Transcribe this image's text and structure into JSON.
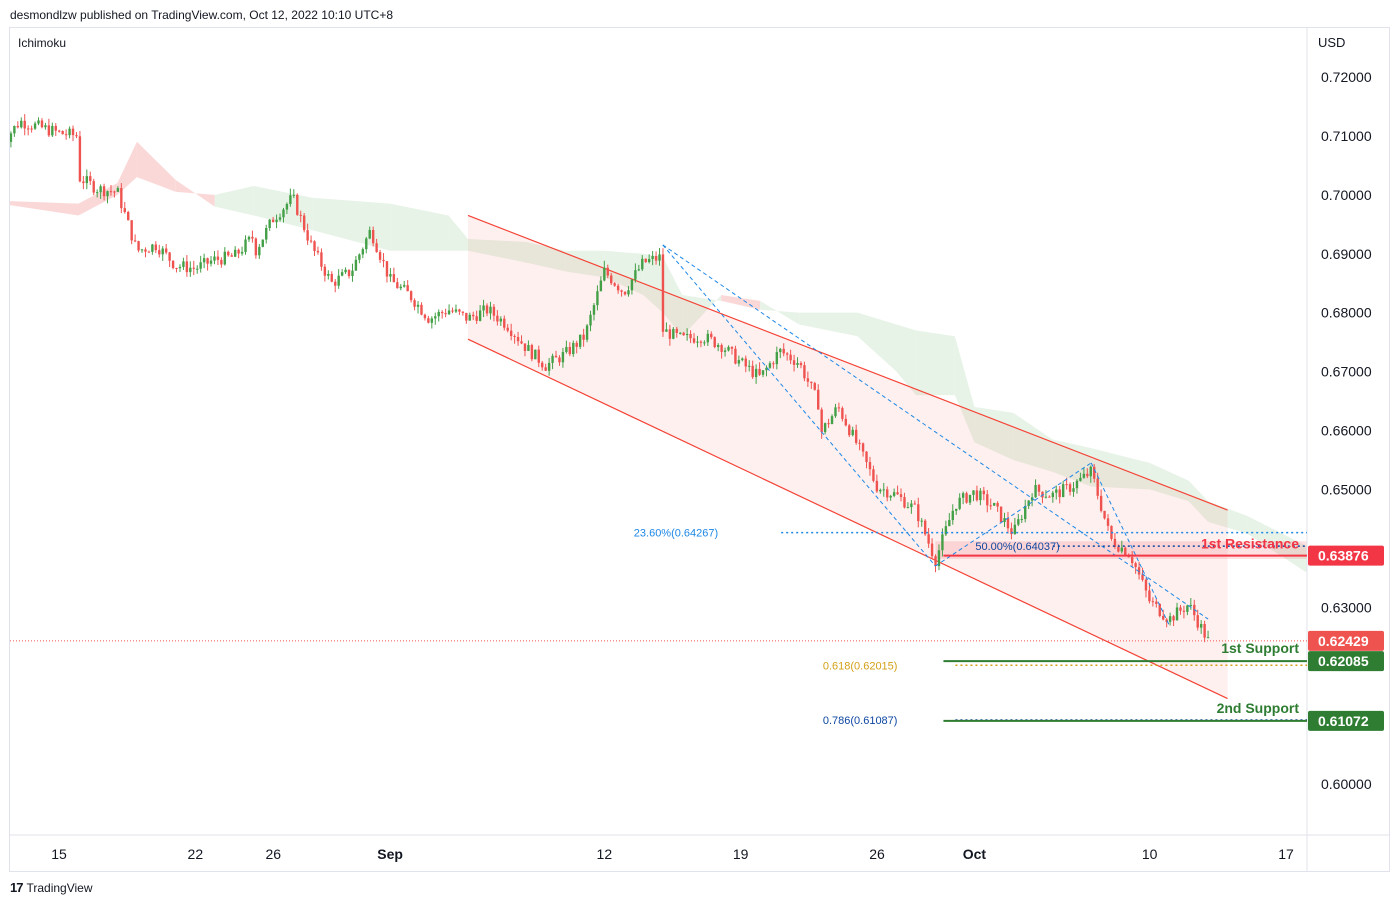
{
  "header": {
    "byline": "desmondlzw published on TradingView.com, Oct 12, 2022 10:10 UTC+8"
  },
  "indicator_label": "Ichimoku",
  "footer": {
    "logo_mark": "17",
    "brand": "TradingView"
  },
  "colors": {
    "up": "#26a69a",
    "up_body": "#43a047",
    "down": "#ef5350",
    "channel": "#f44336",
    "resistance": "#f23645",
    "support": "#2e7d32",
    "fib_blue": "#1e88e5",
    "fib_gold": "#d4a017",
    "fib_dark": "#0d47a1",
    "cloud_bear": "#fbd4d4",
    "cloud_bull": "#e6f2e6"
  },
  "chart_data": {
    "type": "candlestick",
    "currency": "USD",
    "y_range": [
      0.591,
      0.7245
    ],
    "y_ticks": [
      {
        "value": 0.72,
        "label": "0.72000"
      },
      {
        "value": 0.71,
        "label": "0.71000"
      },
      {
        "value": 0.7,
        "label": "0.70000"
      },
      {
        "value": 0.69,
        "label": "0.69000"
      },
      {
        "value": 0.68,
        "label": "0.68000"
      },
      {
        "value": 0.67,
        "label": "0.67000"
      },
      {
        "value": 0.66,
        "label": "0.66000"
      },
      {
        "value": 0.65,
        "label": "0.65000"
      },
      {
        "value": 0.63,
        "label": "0.63000"
      },
      {
        "value": 0.6,
        "label": "0.60000"
      }
    ],
    "x_range": [
      "2022-08-12",
      "2022-10-20"
    ],
    "x_ticks": [
      {
        "date": "2022-08-15",
        "label": "15",
        "bold": false
      },
      {
        "date": "2022-08-22",
        "label": "22",
        "bold": false
      },
      {
        "date": "2022-08-26",
        "label": "26",
        "bold": false
      },
      {
        "date": "2022-09-01",
        "label": "Sep",
        "bold": true
      },
      {
        "date": "2022-09-12",
        "label": "12",
        "bold": false
      },
      {
        "date": "2022-09-19",
        "label": "19",
        "bold": false
      },
      {
        "date": "2022-09-26",
        "label": "26",
        "bold": false
      },
      {
        "date": "2022-10-01",
        "label": "Oct",
        "bold": true
      },
      {
        "date": "2022-10-10",
        "label": "10",
        "bold": false
      },
      {
        "date": "2022-10-17",
        "label": "17",
        "bold": false
      }
    ],
    "price_path": [
      {
        "date": "2022-08-12",
        "price": 0.7085
      },
      {
        "date": "2022-08-13",
        "price": 0.7125
      },
      {
        "date": "2022-08-15",
        "price": 0.7105
      },
      {
        "date": "2022-08-16",
        "price": 0.71
      },
      {
        "date": "2022-08-16",
        "price": 0.703
      },
      {
        "date": "2022-08-17",
        "price": 0.701
      },
      {
        "date": "2022-08-18",
        "price": 0.7005
      },
      {
        "date": "2022-08-19",
        "price": 0.6905
      },
      {
        "date": "2022-08-20",
        "price": 0.6915
      },
      {
        "date": "2022-08-21",
        "price": 0.688
      },
      {
        "date": "2022-08-22",
        "price": 0.6875
      },
      {
        "date": "2022-08-23",
        "price": 0.689
      },
      {
        "date": "2022-08-24",
        "price": 0.6895
      },
      {
        "date": "2022-08-25",
        "price": 0.693
      },
      {
        "date": "2022-08-25",
        "price": 0.69
      },
      {
        "date": "2022-08-26",
        "price": 0.696
      },
      {
        "date": "2022-08-27",
        "price": 0.6995
      },
      {
        "date": "2022-08-28",
        "price": 0.691
      },
      {
        "date": "2022-08-29",
        "price": 0.685
      },
      {
        "date": "2022-08-30",
        "price": 0.687
      },
      {
        "date": "2022-08-31",
        "price": 0.694
      },
      {
        "date": "2022-09-01",
        "price": 0.6855
      },
      {
        "date": "2022-09-02",
        "price": 0.683
      },
      {
        "date": "2022-09-03",
        "price": 0.679
      },
      {
        "date": "2022-09-04",
        "price": 0.6805
      },
      {
        "date": "2022-09-05",
        "price": 0.679
      },
      {
        "date": "2022-09-06",
        "price": 0.6805
      },
      {
        "date": "2022-09-07",
        "price": 0.678
      },
      {
        "date": "2022-09-08",
        "price": 0.674
      },
      {
        "date": "2022-09-09",
        "price": 0.671
      },
      {
        "date": "2022-09-10",
        "price": 0.673
      },
      {
        "date": "2022-09-11",
        "price": 0.676
      },
      {
        "date": "2022-09-12",
        "price": 0.687
      },
      {
        "date": "2022-09-13",
        "price": 0.6835
      },
      {
        "date": "2022-09-14",
        "price": 0.6885
      },
      {
        "date": "2022-09-15",
        "price": 0.6895
      },
      {
        "date": "2022-09-15",
        "price": 0.677
      },
      {
        "date": "2022-09-16",
        "price": 0.6755
      },
      {
        "date": "2022-09-17",
        "price": 0.676
      },
      {
        "date": "2022-09-18",
        "price": 0.6745
      },
      {
        "date": "2022-09-19",
        "price": 0.6715
      },
      {
        "date": "2022-09-20",
        "price": 0.669
      },
      {
        "date": "2022-09-21",
        "price": 0.6735
      },
      {
        "date": "2022-09-22",
        "price": 0.6715
      },
      {
        "date": "2022-09-23",
        "price": 0.6645
      },
      {
        "date": "2022-09-23",
        "price": 0.659
      },
      {
        "date": "2022-09-24",
        "price": 0.664
      },
      {
        "date": "2022-09-25",
        "price": 0.6575
      },
      {
        "date": "2022-09-26",
        "price": 0.6505
      },
      {
        "date": "2022-09-27",
        "price": 0.649
      },
      {
        "date": "2022-09-28",
        "price": 0.6465
      },
      {
        "date": "2022-09-29",
        "price": 0.638
      },
      {
        "date": "2022-09-30",
        "price": 0.6475
      },
      {
        "date": "2022-10-01",
        "price": 0.6495
      },
      {
        "date": "2022-10-02",
        "price": 0.647
      },
      {
        "date": "2022-10-03",
        "price": 0.6425
      },
      {
        "date": "2022-10-04",
        "price": 0.65
      },
      {
        "date": "2022-10-05",
        "price": 0.649
      },
      {
        "date": "2022-10-06",
        "price": 0.6505
      },
      {
        "date": "2022-10-07",
        "price": 0.653
      },
      {
        "date": "2022-10-08",
        "price": 0.6415
      },
      {
        "date": "2022-10-09",
        "price": 0.639
      },
      {
        "date": "2022-10-10",
        "price": 0.631
      },
      {
        "date": "2022-10-11",
        "price": 0.628
      },
      {
        "date": "2022-10-12",
        "price": 0.6305
      },
      {
        "date": "2022-10-13",
        "price": 0.6243
      }
    ],
    "ichimoku_cloud": [
      {
        "date": "2022-08-12",
        "a": 0.6985,
        "b": 0.699
      },
      {
        "date": "2022-08-16",
        "a": 0.6965,
        "b": 0.6985
      },
      {
        "date": "2022-08-18",
        "a": 0.7,
        "b": 0.702
      },
      {
        "date": "2022-08-19",
        "a": 0.703,
        "b": 0.709
      },
      {
        "date": "2022-08-21",
        "a": 0.7005,
        "b": 0.7025
      },
      {
        "date": "2022-08-23",
        "a": 0.7,
        "b": 0.698
      },
      {
        "date": "2022-08-25",
        "a": 0.7015,
        "b": 0.6965
      },
      {
        "date": "2022-08-28",
        "a": 0.6995,
        "b": 0.694
      },
      {
        "date": "2022-09-01",
        "a": 0.6985,
        "b": 0.6905
      },
      {
        "date": "2022-09-04",
        "a": 0.6965,
        "b": 0.6905
      },
      {
        "date": "2022-09-05",
        "a": 0.6925,
        "b": 0.6905
      },
      {
        "date": "2022-09-08",
        "a": 0.692,
        "b": 0.6885
      },
      {
        "date": "2022-09-10",
        "a": 0.6905,
        "b": 0.687
      },
      {
        "date": "2022-09-12",
        "a": 0.6905,
        "b": 0.686
      },
      {
        "date": "2022-09-14",
        "a": 0.69,
        "b": 0.683
      },
      {
        "date": "2022-09-15",
        "a": 0.6895,
        "b": 0.68
      },
      {
        "date": "2022-09-16",
        "a": 0.683,
        "b": 0.676
      },
      {
        "date": "2022-09-18",
        "a": 0.682,
        "b": 0.683
      },
      {
        "date": "2022-09-20",
        "a": 0.6805,
        "b": 0.682
      },
      {
        "date": "2022-09-22",
        "a": 0.68,
        "b": 0.678
      },
      {
        "date": "2022-09-25",
        "a": 0.68,
        "b": 0.676
      },
      {
        "date": "2022-09-27",
        "a": 0.678,
        "b": 0.67
      },
      {
        "date": "2022-09-28",
        "a": 0.677,
        "b": 0.666
      },
      {
        "date": "2022-09-30",
        "a": 0.676,
        "b": 0.666
      },
      {
        "date": "2022-10-01",
        "a": 0.664,
        "b": 0.658
      },
      {
        "date": "2022-10-03",
        "a": 0.663,
        "b": 0.655
      },
      {
        "date": "2022-10-05",
        "a": 0.6585,
        "b": 0.653
      },
      {
        "date": "2022-10-07",
        "a": 0.657,
        "b": 0.6505
      },
      {
        "date": "2022-10-10",
        "a": 0.6545,
        "b": 0.65
      },
      {
        "date": "2022-10-12",
        "a": 0.6515,
        "b": 0.648
      },
      {
        "date": "2022-10-13",
        "a": 0.648,
        "b": 0.6445
      },
      {
        "date": "2022-10-15",
        "a": 0.6455,
        "b": 0.6425
      },
      {
        "date": "2022-10-18",
        "a": 0.6405,
        "b": 0.636
      },
      {
        "date": "2022-10-19",
        "a": 0.64,
        "b": 0.6355
      }
    ],
    "channel": {
      "upper": [
        {
          "date": "2022-09-05",
          "price": 0.6965
        },
        {
          "date": "2022-10-14",
          "price": 0.6465
        }
      ],
      "lower": [
        {
          "date": "2022-09-05",
          "price": 0.6755
        },
        {
          "date": "2022-10-14",
          "price": 0.6145
        }
      ]
    },
    "zigzag": [
      [
        {
          "date": "2022-09-15",
          "price": 0.6915
        },
        {
          "date": "2022-09-29",
          "price": 0.637
        }
      ],
      [
        {
          "date": "2022-09-15",
          "price": 0.6915
        },
        {
          "date": "2022-10-13",
          "price": 0.628
        }
      ],
      [
        {
          "date": "2022-09-29",
          "price": 0.637
        },
        {
          "date": "2022-10-07",
          "price": 0.6545
        }
      ],
      [
        {
          "date": "2022-10-07",
          "price": 0.6545
        },
        {
          "date": "2022-10-11",
          "price": 0.627
        }
      ]
    ],
    "resistance_zone": {
      "date_start": "2022-09-29",
      "date_end": "2022-10-19",
      "top": 0.6412,
      "bottom": 0.6382
    },
    "levels": [
      {
        "name": "fib-23.6",
        "price": 0.64267,
        "text": "23.60%(0.64267)",
        "style": "dotted",
        "color_key": "fib_blue",
        "date_start": "2022-09-18",
        "date_end": "2022-10-19"
      },
      {
        "name": "fib-50",
        "price": 0.64037,
        "text": "50.00%(0.64037)",
        "style": "dotted",
        "color_key": "fib_dark",
        "date_start": "2022-10-04",
        "date_end": "2022-10-19"
      },
      {
        "name": "resistance-1",
        "price": 0.63876,
        "text": "1st Resistance",
        "style": "solid",
        "color_key": "resistance",
        "date_start": "2022-09-29",
        "date_end": "2022-10-19",
        "axis_label": "0.63876"
      },
      {
        "name": "current-price",
        "price": 0.62429,
        "text": "",
        "style": "dotted-thin",
        "color_key": "down",
        "date_start": "2022-08-12",
        "date_end": "2022-10-19",
        "axis_label": "0.62429"
      },
      {
        "name": "fib-61.8",
        "price": 0.62015,
        "text": "0.618(0.62015)",
        "style": "dotted",
        "color_key": "fib_gold",
        "date_start": "2022-09-29",
        "date_end": "2022-10-19"
      },
      {
        "name": "support-1",
        "price": 0.62085,
        "text": "1st Support",
        "style": "solid",
        "color_key": "support",
        "date_start": "2022-09-29",
        "date_end": "2022-10-19",
        "axis_label": "0.62085"
      },
      {
        "name": "fib-78.6",
        "price": 0.61087,
        "text": "0.786(0.61087)",
        "style": "dotted",
        "color_key": "fib_dark",
        "date_start": "2022-09-29",
        "date_end": "2022-10-19"
      },
      {
        "name": "support-2",
        "price": 0.61072,
        "text": "2nd Support",
        "style": "solid",
        "color_key": "support",
        "date_start": "2022-09-29",
        "date_end": "2022-10-19",
        "axis_label": "0.61072"
      }
    ]
  }
}
